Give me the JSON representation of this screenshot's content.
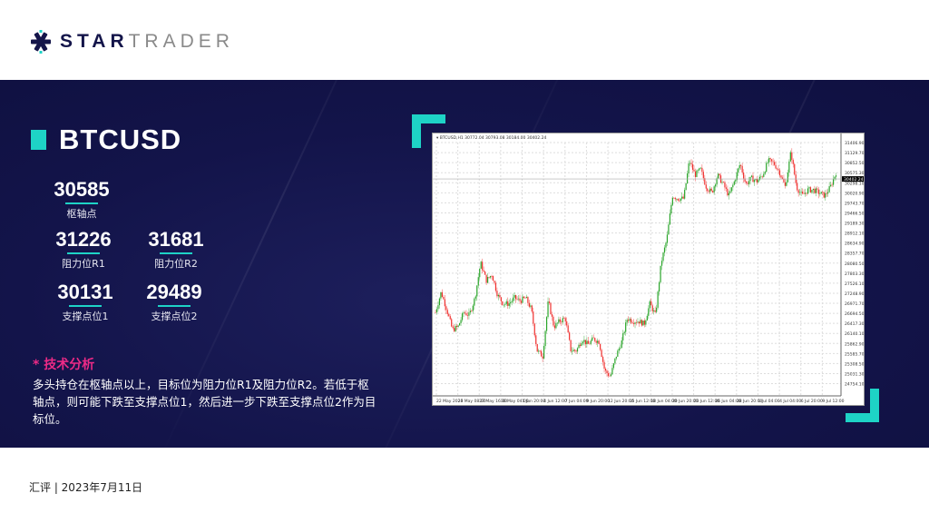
{
  "brand": {
    "name_bold": "STAR",
    "name_light": "TRADER"
  },
  "instrument": {
    "symbol": "BTCUSD"
  },
  "levels": {
    "pivot": {
      "value": "30585",
      "label": "枢轴点"
    },
    "r1": {
      "value": "31226",
      "label": "阻力位R1"
    },
    "r2": {
      "value": "31681",
      "label": "阻力位R2"
    },
    "s1": {
      "value": "30131",
      "label": "支撑点位1"
    },
    "s2": {
      "value": "29489",
      "label": "支撑点位2"
    }
  },
  "analysis": {
    "heading": "* 技术分析",
    "text": "多头持仓在枢轴点以上，目标位为阻力位R1及阻力位R2。若低于枢轴点，则可能下跌至支撑点位1，然后进一步下跌至支撑点位2作为目标位。"
  },
  "footer": {
    "text": "汇评 | 2023年7月11日"
  },
  "colors": {
    "navy": "#14154a",
    "accent": "#1ed3c6",
    "highlight": "#ec2a86",
    "bull": "#2aa52a",
    "bear": "#f0302e"
  },
  "chart_data": {
    "type": "candlestick",
    "header": "BTCUSD,H1  30772.04 30793.08 30184.00 30402.24",
    "current_price": "30402.24",
    "ylim": [
      24600,
      31600
    ],
    "y_ticks": [
      "31406.90",
      "31129.70",
      "30852.50",
      "30575.30",
      "30298.10",
      "30020.90",
      "29743.70",
      "29466.50",
      "29189.30",
      "28912.10",
      "28634.90",
      "28357.70",
      "28080.50",
      "27803.30",
      "27526.10",
      "27248.90",
      "26971.70",
      "26694.50",
      "26417.30",
      "26140.10",
      "25862.90",
      "25585.70",
      "25308.50",
      "25031.30",
      "24754.10"
    ],
    "x_ticks": [
      "22 May 2023",
      "26 May 08:00",
      "27 May 16:00",
      "30 May 04:00",
      "1 Jun 20:00",
      "4 Jun 12:00",
      "7 Jun 04:00",
      "9 Jun 20:00",
      "12 Jun 20:00",
      "15 Jun 12:00",
      "18 Jun 04:00",
      "20 Jun 20:00",
      "23 Jun 12:00",
      "26 Jun 04:00",
      "28 Jun 20:00",
      "1 Jul 04:00",
      "4 Jul 04:00",
      "6 Jul 20:00",
      "9 Jul 12:00"
    ],
    "grid": true,
    "approx_closes": [
      26720,
      27280,
      26800,
      26240,
      26320,
      26720,
      26640,
      27120,
      28090,
      27600,
      27770,
      27200,
      26960,
      26960,
      27120,
      27040,
      27120,
      26800,
      25670,
      25510,
      27040,
      26320,
      26480,
      26560,
      25670,
      25670,
      25990,
      25830,
      25990,
      25910,
      25110,
      24950,
      25510,
      25910,
      26560,
      26480,
      26480,
      26400,
      26960,
      26640,
      28090,
      28730,
      29940,
      29860,
      29860,
      30910,
      30510,
      30670,
      30180,
      30020,
      30510,
      30260,
      29940,
      30340,
      30830,
      30260,
      30420,
      30340,
      30510,
      30910,
      30830,
      30590,
      30180,
      31150,
      30180,
      29940,
      30100,
      30100,
      30020,
      29940,
      30180,
      30580
    ]
  }
}
